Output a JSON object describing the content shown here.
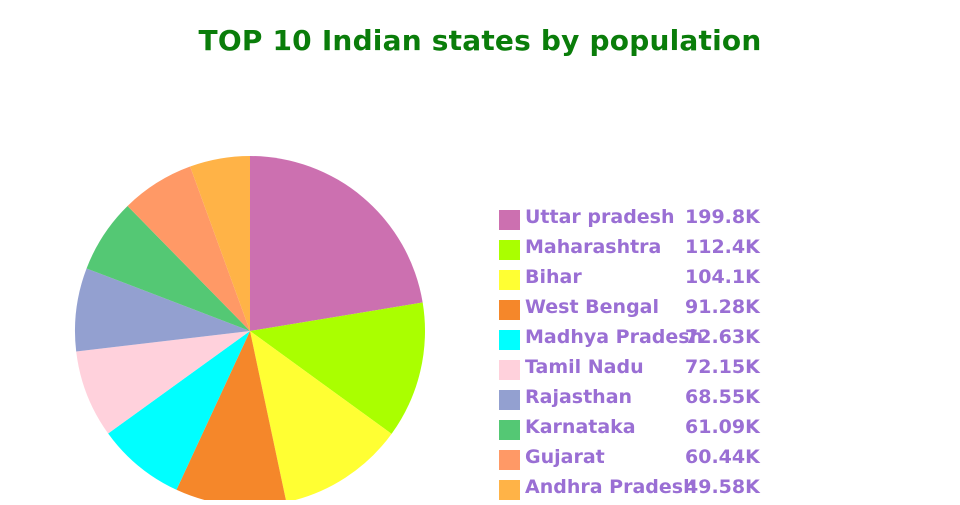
{
  "chart_data": {
    "type": "pie",
    "title": "TOP 10 Indian states by population",
    "title_color": "#0a7d0a",
    "legend_text_color": "#9a6fd4",
    "legend_position": "right",
    "start_angle_deg": 0,
    "direction": "clockwise",
    "categories": [
      "Uttar pradesh",
      "Maharashtra",
      "Bihar",
      "West Bengal",
      "Madhya Pradesh",
      "Tamil Nadu",
      "Rajasthan",
      "Karnataka",
      "Gujarat",
      "Andhra Pradesh"
    ],
    "values": [
      199.8,
      112.4,
      104.1,
      91.28,
      72.63,
      72.15,
      68.55,
      61.09,
      60.44,
      49.58
    ],
    "value_labels": [
      "199.8K",
      "112.4K",
      "104.1K",
      "91.28K",
      "72.63K",
      "72.15K",
      "68.55K",
      "61.09K",
      "60.44K",
      "49.58K"
    ],
    "colors": [
      "#cc70b0",
      "#aaff00",
      "#ffff33",
      "#f5872a",
      "#00ffff",
      "#ffd1dc",
      "#93a0d0",
      "#54c874",
      "#ff9966",
      "#ffb347"
    ]
  }
}
